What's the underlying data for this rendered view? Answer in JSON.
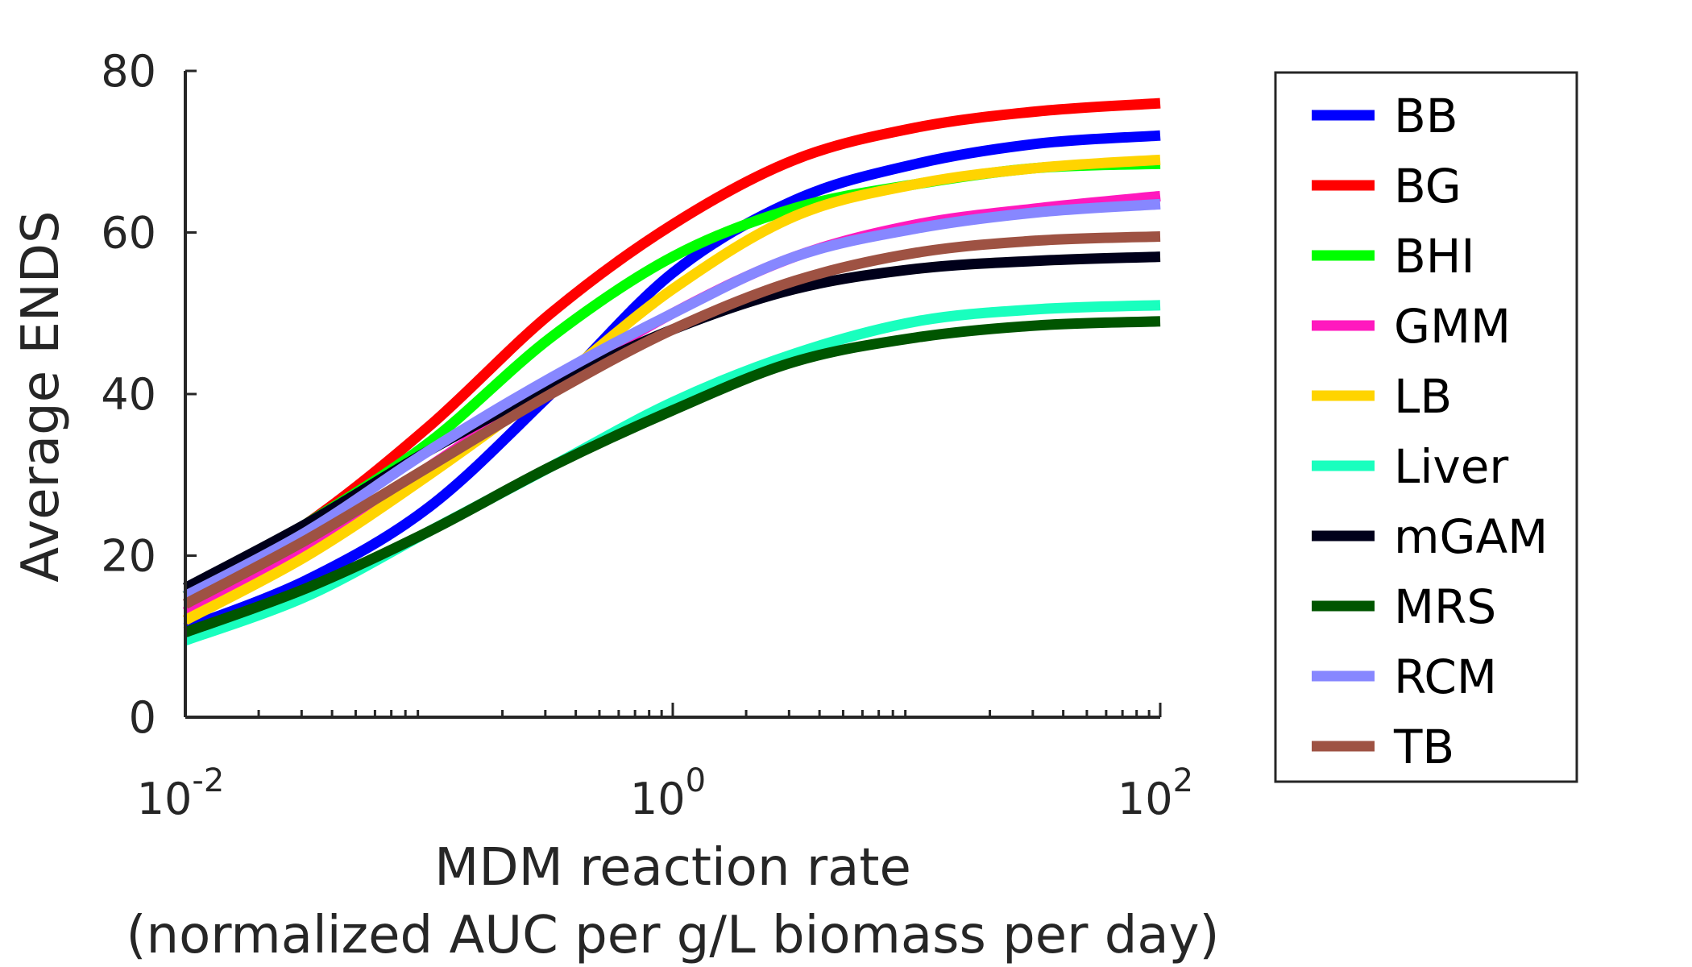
{
  "chart_data": {
    "type": "line",
    "xscale": "log",
    "xlim": [
      0.01,
      100
    ],
    "ylim": [
      0,
      80
    ],
    "xticks": [
      {
        "value": 0.01,
        "base": "10",
        "exp": "-2"
      },
      {
        "value": 1,
        "base": "10",
        "exp": "0"
      },
      {
        "value": 100,
        "base": "10",
        "exp": "2"
      }
    ],
    "yticks": [
      "0",
      "20",
      "40",
      "60",
      "80"
    ],
    "xlabel": "MDM reaction rate",
    "xlabel_line2": "(normalized AUC per g/L biomass per day)",
    "ylabel": "Average ENDS",
    "grid": false,
    "legend_position": "right",
    "x": [
      0.01,
      0.0316,
      0.1,
      0.316,
      1,
      3.16,
      10,
      31.6,
      100
    ],
    "series": [
      {
        "name": "BB",
        "color": "#0000ff",
        "values": [
          11,
          17,
          26,
          40,
          55,
          64,
          68.5,
          71,
          72
        ]
      },
      {
        "name": "BG",
        "color": "#ff0000",
        "values": [
          15,
          24,
          36,
          50,
          61,
          69,
          73,
          75,
          76
        ]
      },
      {
        "name": "BHI",
        "color": "#00ff00",
        "values": [
          15,
          24,
          34,
          47,
          57,
          63,
          66,
          68,
          68.5
        ]
      },
      {
        "name": "GMM",
        "color": "#ff19be",
        "values": [
          13,
          21,
          31,
          41,
          50,
          57,
          61,
          63,
          64.5
        ]
      },
      {
        "name": "LB",
        "color": "#ffd400",
        "values": [
          12,
          20,
          30,
          41,
          53,
          62,
          66,
          68,
          69
        ]
      },
      {
        "name": "Liver",
        "color": "#19ffbe",
        "values": [
          9.5,
          15,
          23,
          31,
          39,
          45,
          49,
          50.5,
          51
        ]
      },
      {
        "name": "mGAM",
        "color": "#00001a",
        "values": [
          16,
          24,
          33,
          41,
          48,
          53,
          55.5,
          56.5,
          57
        ]
      },
      {
        "name": "MRS",
        "color": "#005500",
        "values": [
          10.5,
          16,
          23,
          31,
          38,
          44,
          47,
          48.5,
          49
        ]
      },
      {
        "name": "RCM",
        "color": "#8787ff",
        "values": [
          15,
          23,
          33,
          42,
          50,
          57,
          60.5,
          62.5,
          63.5
        ]
      },
      {
        "name": "TB",
        "color": "#9e5243",
        "values": [
          14,
          22,
          31,
          40,
          48,
          54,
          57.5,
          59,
          59.5
        ]
      }
    ]
  }
}
